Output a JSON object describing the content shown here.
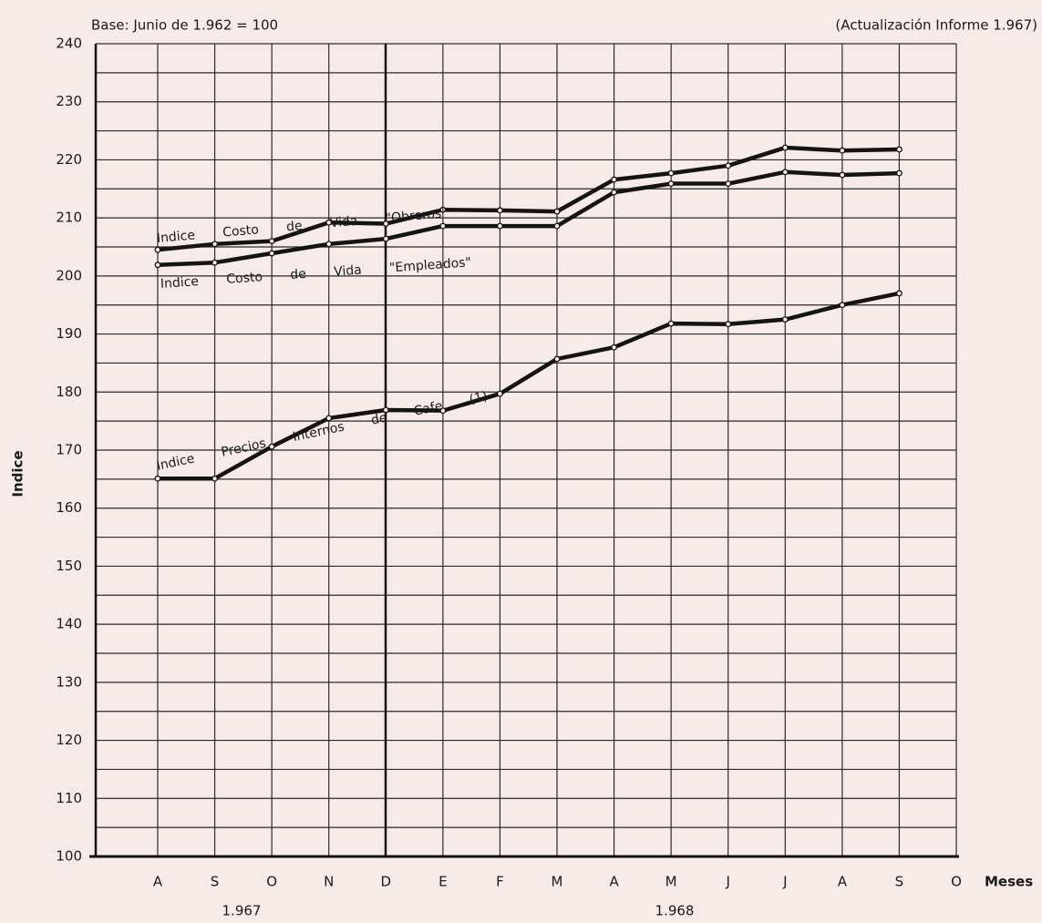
{
  "chart_data": {
    "type": "line",
    "title": "Base: Junio de 1.962 = 100",
    "subtitle": "(Actualización Informe 1.967)",
    "y_label": "Indice",
    "x_label": "Meses",
    "year_labels": [
      "1.967",
      "1.968"
    ],
    "categories": [
      "A",
      "S",
      "O",
      "N",
      "D",
      "E",
      "F",
      "M",
      "A",
      "M",
      "J",
      "J",
      "A",
      "S",
      "O"
    ],
    "series": [
      {
        "name": "Indice Costo de Vida \"Obreros\"",
        "color": "#141414",
        "values": [
          204.5,
          205.5,
          206,
          209.2,
          209,
          211.4,
          211.3,
          211.1,
          216.6,
          217.7,
          219,
          222.1,
          221.6,
          221.8,
          null
        ]
      },
      {
        "name": "Indice Costo de Vida \"Empleados\"",
        "color": "#141414",
        "values": [
          201.9,
          202.3,
          203.9,
          205.5,
          206.4,
          208.6,
          208.6,
          208.6,
          214.4,
          215.9,
          215.9,
          217.9,
          217.4,
          217.7,
          null
        ]
      },
      {
        "name": "Indice Precios Internos de Cafe (1)",
        "color": "#141414",
        "values": [
          165.1,
          165.1,
          170.6,
          175.5,
          176.9,
          176.8,
          179.7,
          185.7,
          187.7,
          191.8,
          191.7,
          192.5,
          195,
          197,
          null
        ]
      }
    ],
    "ylim": [
      100,
      240
    ],
    "yticks": [
      100,
      110,
      120,
      130,
      140,
      150,
      160,
      170,
      180,
      190,
      200,
      210,
      220,
      230,
      240
    ],
    "grid": true
  }
}
